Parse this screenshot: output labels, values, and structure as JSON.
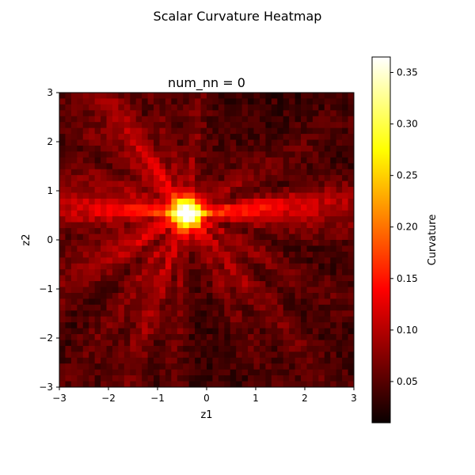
{
  "figure": {
    "suptitle": "Scalar Curvature Heatmap"
  },
  "chart_data": {
    "type": "heatmap",
    "title": "num_nn = 0",
    "xlabel": "z1",
    "ylabel": "z2",
    "xlim": [
      -3,
      3
    ],
    "ylim": [
      -3,
      3
    ],
    "xticks": [
      -3,
      -2,
      -1,
      0,
      1,
      2,
      3
    ],
    "yticks": [
      -3,
      -2,
      -1,
      0,
      1,
      2,
      3
    ],
    "xtick_labels": [
      "−3",
      "−2",
      "−1",
      "0",
      "1",
      "2",
      "3"
    ],
    "ytick_labels": [
      "−3",
      "−2",
      "−1",
      "0",
      "1",
      "2",
      "3"
    ],
    "grid_resolution": 50,
    "colormap": "hot",
    "value_range": [
      0.01,
      0.365
    ],
    "peak": {
      "z1": -0.4,
      "z2": 0.55,
      "value": 0.36
    },
    "description_of_field": "radial streak pattern emanating from peak; strong horizontal ridge toward positive z1 at z2≈0.5 and a ridge toward negative z1 at z2≈0",
    "colorbar": {
      "label": "Curvature",
      "ticks": [
        0.05,
        0.1,
        0.15,
        0.2,
        0.25,
        0.3,
        0.35
      ],
      "tick_labels": [
        "0.05",
        "0.10",
        "0.15",
        "0.20",
        "0.25",
        "0.30",
        "0.35"
      ]
    }
  }
}
